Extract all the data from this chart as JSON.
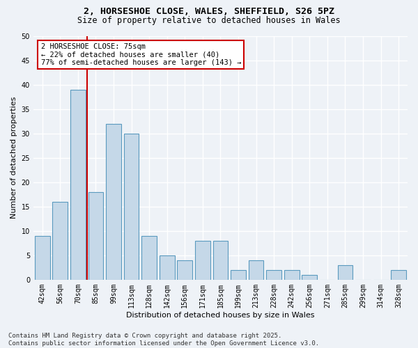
{
  "title_line1": "2, HORSESHOE CLOSE, WALES, SHEFFIELD, S26 5PZ",
  "title_line2": "Size of property relative to detached houses in Wales",
  "xlabel": "Distribution of detached houses by size in Wales",
  "ylabel": "Number of detached properties",
  "categories": [
    "42sqm",
    "56sqm",
    "70sqm",
    "85sqm",
    "99sqm",
    "113sqm",
    "128sqm",
    "142sqm",
    "156sqm",
    "171sqm",
    "185sqm",
    "199sqm",
    "213sqm",
    "228sqm",
    "242sqm",
    "256sqm",
    "271sqm",
    "285sqm",
    "299sqm",
    "314sqm",
    "328sqm"
  ],
  "values": [
    9,
    16,
    39,
    18,
    32,
    30,
    9,
    5,
    4,
    8,
    8,
    2,
    4,
    2,
    2,
    1,
    0,
    3,
    0,
    0,
    2
  ],
  "bar_color": "#c5d8e8",
  "bar_edge_color": "#5a9abf",
  "vline_x": 2.5,
  "vline_color": "#cc0000",
  "annotation_text": "2 HORSESHOE CLOSE: 75sqm\n← 22% of detached houses are smaller (40)\n77% of semi-detached houses are larger (143) →",
  "annotation_box_color": "#ffffff",
  "annotation_box_edge_color": "#cc0000",
  "ylim": [
    0,
    50
  ],
  "yticks": [
    0,
    5,
    10,
    15,
    20,
    25,
    30,
    35,
    40,
    45,
    50
  ],
  "bg_color": "#eef2f7",
  "grid_color": "#ffffff",
  "footnote": "Contains HM Land Registry data © Crown copyright and database right 2025.\nContains public sector information licensed under the Open Government Licence v3.0.",
  "title_fontsize": 9.5,
  "subtitle_fontsize": 8.5,
  "axis_label_fontsize": 8,
  "tick_fontsize": 7,
  "annotation_fontsize": 7.5,
  "footnote_fontsize": 6.5
}
